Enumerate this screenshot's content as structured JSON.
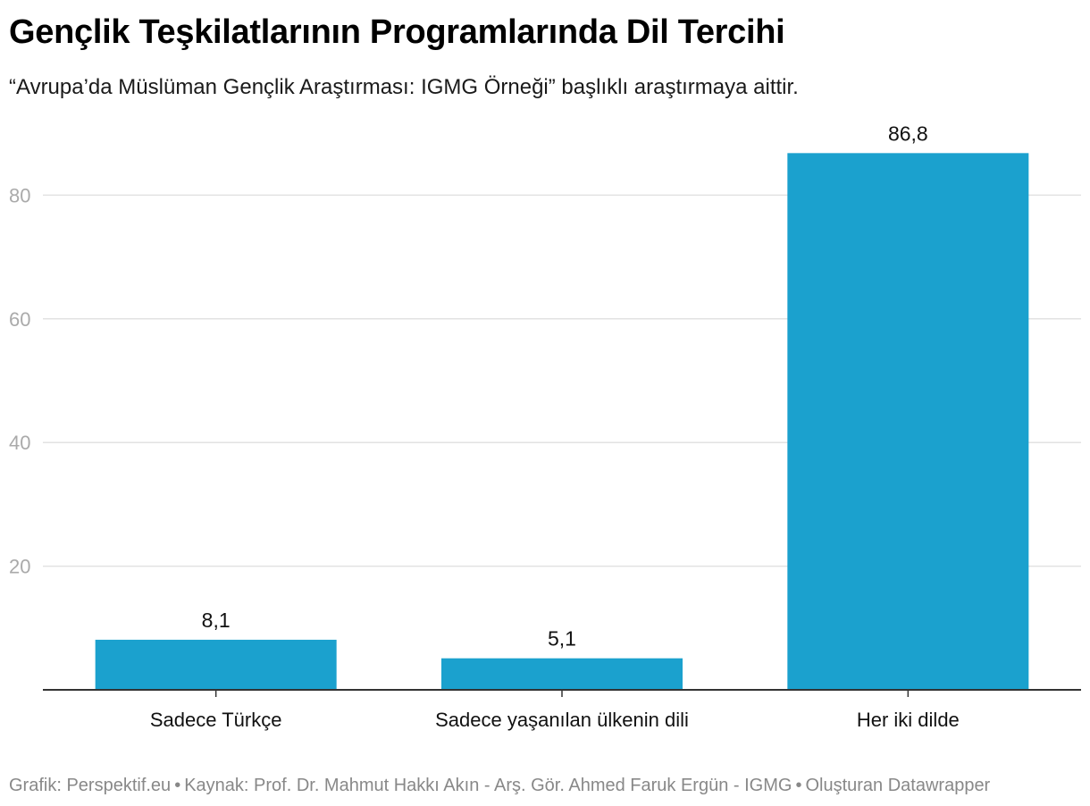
{
  "header": {
    "title": "Gençlik Teşkilatlarının Programlarında Dil Tercihi",
    "subtitle": "“Avrupa’da Müslüman Gençlik Araştırması: IGMG Örneği” başlıklı araştırmaya aittir."
  },
  "footer": {
    "graphic": "Grafik: Perspektif.eu",
    "separator": "•",
    "source": "Kaynak: Prof. Dr. Mahmut Hakkı Akın - Arş. Gör. Ahmed Faruk Ergün - IGMG",
    "credit": "Oluşturan Datawrapper"
  },
  "chart_data": {
    "type": "bar",
    "categories": [
      "Sadece Türkçe",
      "Sadece yaşanılan ülkenin dili",
      "Her iki dilde"
    ],
    "values": [
      8.1,
      5.1,
      86.8
    ],
    "value_labels": [
      "8,1",
      "5,1",
      "86,8"
    ],
    "title": "Gençlik Teşkilatlarının Programlarında Dil Tercihi",
    "xlabel": "",
    "ylabel": "",
    "ylim": [
      0,
      90
    ],
    "yticks": [
      20,
      40,
      60,
      80
    ],
    "grid": true,
    "legend": "none",
    "colors": {
      "bar": "#1ba1ce",
      "grid": "#e2e2e2",
      "axis": "#333333",
      "tick_text": "#aaaaaa",
      "label_text": "#111111"
    }
  }
}
